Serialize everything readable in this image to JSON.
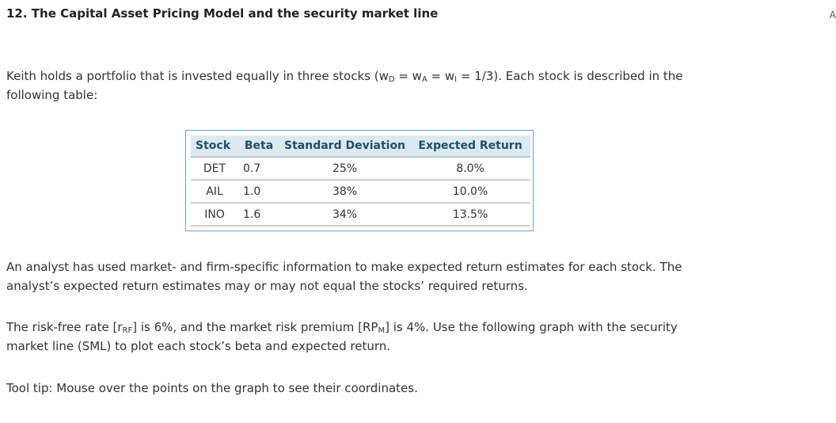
{
  "header": {
    "red_fragment": "",
    "right_edge_fragment": "A",
    "title": "12.  The Capital Asset Pricing Model and the security market line"
  },
  "intro": {
    "text_before": "Keith holds a portfolio that is invested equally in three stocks (w",
    "sub_d": "D",
    "eq1": " = w",
    "sub_a": "A",
    "eq2": " = w",
    "sub_i": "I",
    "text_after": " = 1/3). Each stock is described in the following table:"
  },
  "table": {
    "headers": [
      "Stock",
      "Beta",
      "Standard Deviation",
      "Expected Return"
    ],
    "rows": [
      [
        "DET",
        "0.7",
        "25%",
        "8.0%"
      ],
      [
        "AIL",
        "1.0",
        "38%",
        "10.0%"
      ],
      [
        "INO",
        "1.6",
        "34%",
        "13.5%"
      ]
    ]
  },
  "analyst_paragraph": "An analyst has used market- and firm-specific information to make expected return estimates for each stock. The analyst’s expected return estimates may or may not equal the stocks’ required returns.",
  "rates_paragraph": {
    "t1": "The risk-free rate [r",
    "sub_rf": "RF",
    "t2": "] is 6%, and the market risk premium [RP",
    "sub_m": "M",
    "t3": "] is 4%. Use the following graph with the security market line (SML) to plot each stock’s beta and expected return."
  },
  "tooltip_text": "Tool tip: Mouse over the points on the graph to see their coordinates."
}
